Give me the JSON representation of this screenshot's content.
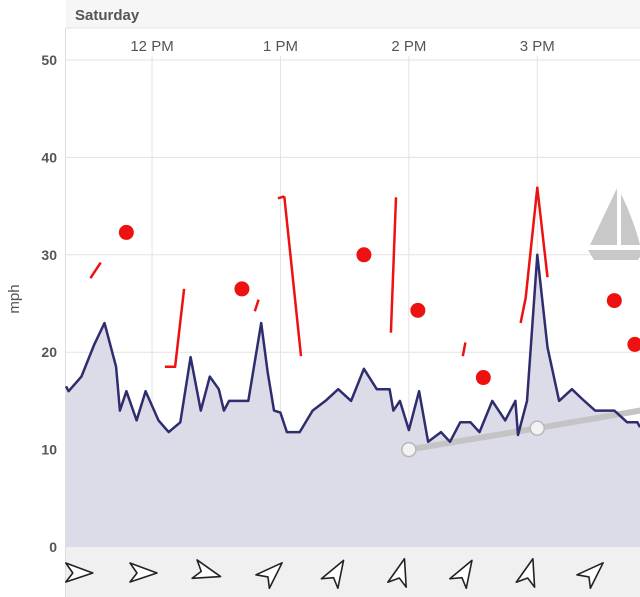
{
  "chart_data": {
    "type": "line",
    "day_label": "Saturday",
    "time_ticks": [
      {
        "label": "12 PM",
        "hour": 12
      },
      {
        "label": "1 PM",
        "hour": 13
      },
      {
        "label": "2 PM",
        "hour": 14
      },
      {
        "label": "3 PM",
        "hour": 15
      }
    ],
    "ylabel": "mph",
    "ylim": [
      0,
      50
    ],
    "yticks": [
      0,
      10,
      20,
      30,
      40,
      50
    ],
    "xlim": [
      11.33,
      15.8
    ],
    "grid": true,
    "colors": {
      "wind_line": "#2e2d6e",
      "wind_fill": "#dcdbe8",
      "gust": "#ee1111",
      "tide": "#c4c4c4",
      "direction_bar": "#f0f0f0",
      "grid": "#e3e3e3"
    },
    "series": [
      {
        "points": [
          [
            11.33,
            16.5
          ],
          [
            11.35,
            16.0
          ],
          [
            11.45,
            17.5
          ],
          [
            11.55,
            20.8
          ],
          [
            11.63,
            23.0
          ],
          [
            11.72,
            18.5
          ],
          [
            11.75,
            14.0
          ],
          [
            11.8,
            16.0
          ],
          [
            11.88,
            13.0
          ],
          [
            11.95,
            16.0
          ],
          [
            12.05,
            13.0
          ],
          [
            12.13,
            11.8
          ],
          [
            12.22,
            12.8
          ],
          [
            12.3,
            19.5
          ],
          [
            12.38,
            14.0
          ],
          [
            12.45,
            17.5
          ],
          [
            12.52,
            16.2
          ],
          [
            12.56,
            14.0
          ],
          [
            12.6,
            15.0
          ],
          [
            12.75,
            15.0
          ],
          [
            12.85,
            23.0
          ],
          [
            12.9,
            18.0
          ],
          [
            12.95,
            14.0
          ],
          [
            13.0,
            13.8
          ],
          [
            13.05,
            11.8
          ],
          [
            13.15,
            11.8
          ],
          [
            13.25,
            14.0
          ],
          [
            13.35,
            15.0
          ],
          [
            13.45,
            16.2
          ],
          [
            13.55,
            15.0
          ],
          [
            13.65,
            18.3
          ],
          [
            13.75,
            16.2
          ],
          [
            13.85,
            16.2
          ],
          [
            13.88,
            14.0
          ],
          [
            13.93,
            15.0
          ],
          [
            14.0,
            12.0
          ],
          [
            14.08,
            16.0
          ],
          [
            14.15,
            10.8
          ],
          [
            14.25,
            11.8
          ],
          [
            14.32,
            10.8
          ],
          [
            14.4,
            12.8
          ],
          [
            14.48,
            12.8
          ],
          [
            14.55,
            11.8
          ],
          [
            14.65,
            15.0
          ],
          [
            14.75,
            13.0
          ],
          [
            14.83,
            15.0
          ],
          [
            14.85,
            11.5
          ],
          [
            14.92,
            15.0
          ],
          [
            15.0,
            30.0
          ],
          [
            15.08,
            20.5
          ],
          [
            15.17,
            15.0
          ],
          [
            15.27,
            16.2
          ],
          [
            15.35,
            15.2
          ],
          [
            15.45,
            14.0
          ],
          [
            15.6,
            14.0
          ],
          [
            15.7,
            12.8
          ],
          [
            15.78,
            12.8
          ],
          [
            15.8,
            12.3
          ]
        ]
      }
    ],
    "gust_markers": [
      {
        "x": 11.8,
        "y": 32.3
      },
      {
        "x": 12.7,
        "y": 26.5
      },
      {
        "x": 13.65,
        "y": 30.0
      },
      {
        "x": 14.07,
        "y": 24.3
      },
      {
        "x": 14.58,
        "y": 17.4
      },
      {
        "x": 15.6,
        "y": 25.3
      },
      {
        "x": 15.76,
        "y": 20.8
      }
    ],
    "gust_segments": [
      [
        [
          11.52,
          27.6
        ],
        [
          11.6,
          29.2
        ]
      ],
      [
        [
          12.1,
          18.5
        ],
        [
          12.18,
          18.5
        ],
        [
          12.25,
          26.5
        ]
      ],
      [
        [
          12.8,
          24.2
        ],
        [
          12.83,
          25.4
        ]
      ],
      [
        [
          12.98,
          35.8
        ],
        [
          13.03,
          36.0
        ]
      ],
      [
        [
          13.03,
          36.0
        ],
        [
          13.16,
          19.6
        ]
      ],
      [
        [
          13.86,
          22.0
        ],
        [
          13.9,
          35.9
        ]
      ],
      [
        [
          14.42,
          19.6
        ],
        [
          14.44,
          21.0
        ]
      ],
      [
        [
          14.87,
          23.0
        ],
        [
          14.91,
          25.6
        ],
        [
          15.0,
          36.9
        ],
        [
          15.08,
          27.7
        ]
      ]
    ],
    "tide_line": {
      "points": [
        [
          14.0,
          10.0
        ],
        [
          15.0,
          12.2
        ],
        [
          15.8,
          14.0
        ]
      ],
      "markers": [
        [
          14.0,
          10.0
        ],
        [
          15.0,
          12.2
        ]
      ]
    },
    "direction_arrows": [
      {
        "hour": 11.43,
        "heading": 180
      },
      {
        "hour": 11.93,
        "heading": 180
      },
      {
        "hour": 12.43,
        "heading": 195
      },
      {
        "hour": 12.93,
        "heading": 135
      },
      {
        "hour": 13.43,
        "heading": 120
      },
      {
        "hour": 13.93,
        "heading": 105
      },
      {
        "hour": 14.43,
        "heading": 120
      },
      {
        "hour": 14.93,
        "heading": 105
      },
      {
        "hour": 15.43,
        "heading": 135
      }
    ],
    "sailboat_icon": "sailboat-icon"
  }
}
